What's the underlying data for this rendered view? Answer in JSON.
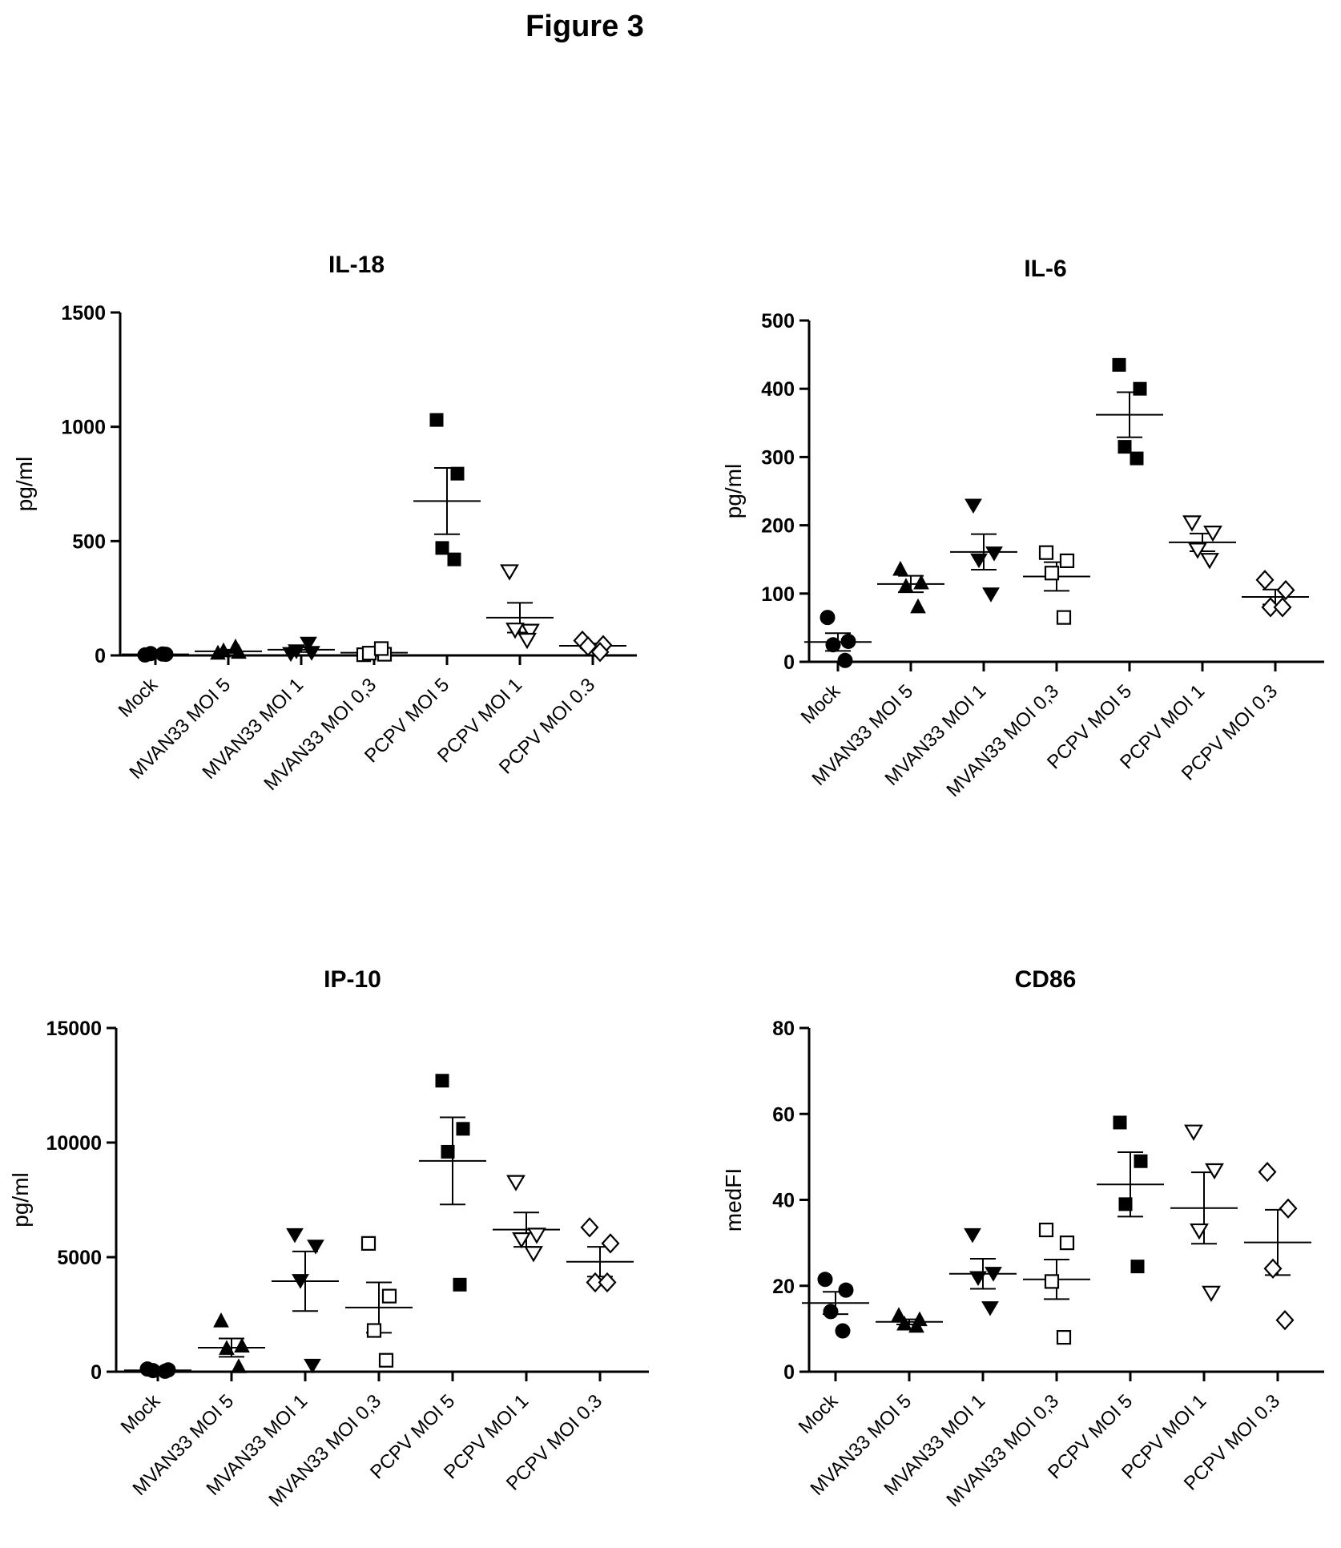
{
  "figure_title": "Figure 3",
  "categories": [
    "Mock",
    "MVAN33 MOI 5",
    "MVAN33 MOI 1",
    "MVAN33 MOI 0,3",
    "PCPV MOI 5",
    "PCPV MOI 1",
    "PCPV MOI 0.3"
  ],
  "chart_data": [
    {
      "type": "scatter",
      "title": "IL-18",
      "ylabel": "pg/ml",
      "ylim": [
        0,
        1500
      ],
      "yticks": [
        0,
        500,
        1000,
        1500
      ],
      "series": [
        {
          "category": "Mock",
          "marker": "circle-filled",
          "values": [
            2,
            5,
            8,
            6
          ],
          "mean": 5,
          "sem": 2
        },
        {
          "category": "MVAN33 MOI 5",
          "marker": "triangle-up-filled",
          "values": [
            8,
            12,
            18,
            35
          ],
          "mean": 18,
          "sem": 7
        },
        {
          "category": "MVAN33 MOI 1",
          "marker": "triangle-down-filled",
          "values": [
            10,
            15,
            22,
            55
          ],
          "mean": 25,
          "sem": 10
        },
        {
          "category": "MVAN33 MOI 0,3",
          "marker": "square-open",
          "values": [
            3,
            5,
            10,
            30
          ],
          "mean": 12,
          "sem": 6
        },
        {
          "category": "PCPV MOI 5",
          "marker": "square-filled",
          "values": [
            1030,
            795,
            470,
            420
          ],
          "mean": 675,
          "sem": 145
        },
        {
          "category": "PCPV MOI 1",
          "marker": "triangle-down-open",
          "values": [
            370,
            110,
            115,
            70
          ],
          "mean": 165,
          "sem": 65
        },
        {
          "category": "PCPV MOI 0.3",
          "marker": "diamond-open",
          "values": [
            65,
            45,
            40,
            15
          ],
          "mean": 42,
          "sem": 10
        }
      ]
    },
    {
      "type": "scatter",
      "title": "IL-6",
      "ylabel": "pg/ml",
      "ylim": [
        0,
        500
      ],
      "yticks": [
        0,
        100,
        200,
        300,
        400,
        500
      ],
      "series": [
        {
          "category": "Mock",
          "marker": "circle-filled",
          "values": [
            65,
            30,
            25,
            2
          ],
          "mean": 29,
          "sem": 13
        },
        {
          "category": "MVAN33 MOI 5",
          "marker": "triangle-up-filled",
          "values": [
            135,
            115,
            110,
            80
          ],
          "mean": 114,
          "sem": 12
        },
        {
          "category": "MVAN33 MOI 1",
          "marker": "triangle-down-filled",
          "values": [
            230,
            160,
            150,
            100
          ],
          "mean": 161,
          "sem": 26
        },
        {
          "category": "MVAN33 MOI 0,3",
          "marker": "square-open",
          "values": [
            160,
            148,
            130,
            65
          ],
          "mean": 125,
          "sem": 21
        },
        {
          "category": "PCPV MOI 5",
          "marker": "square-filled",
          "values": [
            435,
            400,
            315,
            298
          ],
          "mean": 362,
          "sem": 33
        },
        {
          "category": "PCPV MOI 1",
          "marker": "triangle-down-open",
          "values": [
            205,
            190,
            165,
            150
          ],
          "mean": 175,
          "sem": 13
        },
        {
          "category": "PCPV MOI 0.3",
          "marker": "diamond-open",
          "values": [
            120,
            105,
            80,
            80
          ],
          "mean": 95,
          "sem": 11
        }
      ]
    },
    {
      "type": "scatter",
      "title": "IP-10",
      "ylabel": "pg/ml",
      "ylim": [
        0,
        15000
      ],
      "yticks": [
        0,
        5000,
        10000,
        15000
      ],
      "series": [
        {
          "category": "Mock",
          "marker": "circle-filled",
          "values": [
            120,
            80,
            50,
            20
          ],
          "mean": 60,
          "sem": 20
        },
        {
          "category": "MVAN33 MOI 5",
          "marker": "triangle-up-filled",
          "values": [
            2200,
            1100,
            1000,
            200
          ],
          "mean": 1050,
          "sem": 400
        },
        {
          "category": "MVAN33 MOI 1",
          "marker": "triangle-down-filled",
          "values": [
            6000,
            5500,
            4000,
            300
          ],
          "mean": 3950,
          "sem": 1300
        },
        {
          "category": "MVAN33 MOI 0,3",
          "marker": "square-open",
          "values": [
            5600,
            3300,
            1800,
            500
          ],
          "mean": 2800,
          "sem": 1100
        },
        {
          "category": "PCPV MOI 5",
          "marker": "square-filled",
          "values": [
            12700,
            10600,
            9600,
            3800
          ],
          "mean": 9200,
          "sem": 1900
        },
        {
          "category": "PCPV MOI 1",
          "marker": "triangle-down-open",
          "values": [
            8300,
            6000,
            5800,
            5200
          ],
          "mean": 6200,
          "sem": 750
        },
        {
          "category": "PCPV MOI 0.3",
          "marker": "diamond-open",
          "values": [
            6300,
            5600,
            3900,
            3900
          ],
          "mean": 4800,
          "sem": 650
        }
      ]
    },
    {
      "type": "scatter",
      "title": "CD86",
      "ylabel": "medFI",
      "ylim": [
        0,
        80
      ],
      "yticks": [
        0,
        20,
        40,
        60,
        80
      ],
      "series": [
        {
          "category": "Mock",
          "marker": "circle-filled",
          "values": [
            21.5,
            19,
            14,
            9.5
          ],
          "mean": 16,
          "sem": 2.6
        },
        {
          "category": "MVAN33 MOI 5",
          "marker": "triangle-up-filled",
          "values": [
            13,
            12,
            11,
            10.5
          ],
          "mean": 11.6,
          "sem": 0.6
        },
        {
          "category": "MVAN33 MOI 1",
          "marker": "triangle-down-filled",
          "values": [
            32,
            23,
            22,
            15
          ],
          "mean": 22.8,
          "sem": 3.5
        },
        {
          "category": "MVAN33 MOI 0,3",
          "marker": "square-open",
          "values": [
            33,
            30,
            21,
            8
          ],
          "mean": 21.5,
          "sem": 4.6
        },
        {
          "category": "PCPV MOI 5",
          "marker": "square-filled",
          "values": [
            58,
            49,
            39,
            24.5
          ],
          "mean": 43.6,
          "sem": 7.5
        },
        {
          "category": "PCPV MOI 1",
          "marker": "triangle-down-open",
          "values": [
            56,
            47,
            33,
            18.5
          ],
          "mean": 38.1,
          "sem": 8.3
        },
        {
          "category": "PCPV MOI 0.3",
          "marker": "diamond-open",
          "values": [
            46.5,
            38,
            24,
            12
          ],
          "mean": 30.1,
          "sem": 7.6
        }
      ]
    }
  ]
}
